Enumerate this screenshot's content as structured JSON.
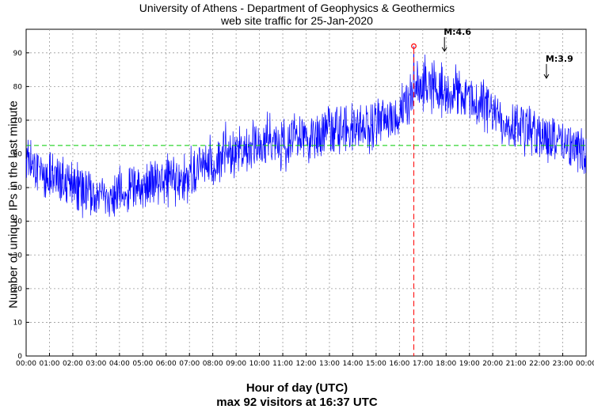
{
  "chart_data": {
    "type": "line",
    "title": "University of Athens - Department of Geophysics & Geothermics",
    "subtitle": "web site traffic for 25-Jan-2020",
    "xlabel": "Hour of day (UTC)",
    "ylabel": "Number of unique IPs in the last minute",
    "footer": "max 92 visitors at 16:37 UTC",
    "xlim": [
      0,
      24
    ],
    "ylim": [
      0,
      97
    ],
    "xticks": [
      "00:00",
      "01:00",
      "02:00",
      "03:00",
      "04:00",
      "05:00",
      "06:00",
      "07:00",
      "08:00",
      "09:00",
      "10:00",
      "11:00",
      "12:00",
      "13:00",
      "14:00",
      "15:00",
      "16:00",
      "17:00",
      "18:00",
      "19:00",
      "20:00",
      "21:00",
      "22:00",
      "23:00",
      "00:00"
    ],
    "yticks": [
      0,
      10,
      20,
      30,
      40,
      50,
      60,
      70,
      80,
      90
    ],
    "grid": true,
    "series": [
      {
        "color": "#0000ff",
        "x": [
          0,
          0.5,
          1,
          1.5,
          2,
          2.5,
          3,
          3.5,
          4,
          4.5,
          5,
          5.5,
          6,
          6.5,
          7,
          7.5,
          8,
          8.5,
          9,
          9.5,
          10,
          10.5,
          11,
          11.5,
          12,
          12.5,
          13,
          13.5,
          14,
          14.5,
          15,
          15.5,
          16,
          16.5,
          17,
          17.5,
          18,
          18.5,
          19,
          19.5,
          20,
          20.5,
          21,
          21.5,
          22,
          22.5,
          23,
          23.5,
          24
        ],
        "y": [
          58,
          55,
          54,
          52,
          50,
          49,
          48,
          48,
          49,
          50,
          51,
          51,
          52,
          53,
          54,
          56,
          58,
          60,
          62,
          62,
          63,
          64,
          63,
          64,
          65,
          66,
          67,
          68,
          68,
          68,
          69,
          70,
          72,
          76,
          80,
          80,
          79,
          78,
          77,
          75,
          72,
          70,
          69,
          67,
          66,
          65,
          64,
          62,
          58
        ]
      }
    ],
    "mean_line": {
      "y": 62.5,
      "color": "#00cc00"
    },
    "max_marker": {
      "x": 16.617,
      "y": 92,
      "color": "#ff0000"
    },
    "annotations": [
      {
        "text": "M:4.6",
        "x": 17.93,
        "y": 90
      },
      {
        "text": "M:3.9",
        "x": 22.3,
        "y": 82
      }
    ]
  }
}
